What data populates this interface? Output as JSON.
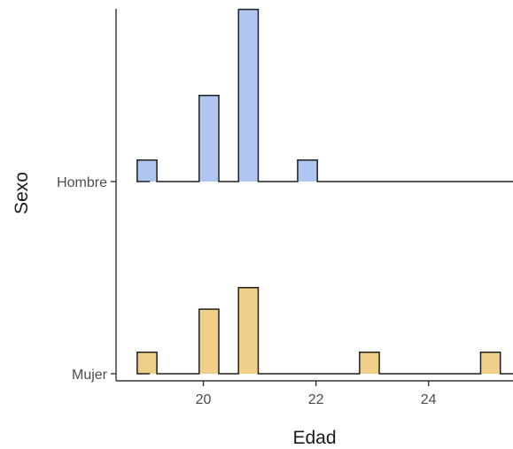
{
  "chart_data": {
    "type": "ridgeline-histogram",
    "xlabel": "Edad",
    "ylabel": "Sexo",
    "xlim": [
      18.45,
      25.5
    ],
    "x_ticks": [
      "20",
      "22",
      "24"
    ],
    "x_tick_values": [
      20,
      22,
      24
    ],
    "bin_width": 0.35,
    "groups": [
      {
        "name": "Hombre",
        "fill": "#aec6f0",
        "bins": [
          {
            "x": 19.0,
            "count": 1
          },
          {
            "x": 20.1,
            "count": 4
          },
          {
            "x": 20.8,
            "count": 8
          },
          {
            "x": 21.85,
            "count": 1
          }
        ]
      },
      {
        "name": "Mujer",
        "fill": "#f0cf8a",
        "bins": [
          {
            "x": 19.0,
            "count": 1
          },
          {
            "x": 20.1,
            "count": 3
          },
          {
            "x": 20.8,
            "count": 4
          },
          {
            "x": 22.95,
            "count": 1
          },
          {
            "x": 25.1,
            "count": 1
          }
        ]
      }
    ]
  }
}
